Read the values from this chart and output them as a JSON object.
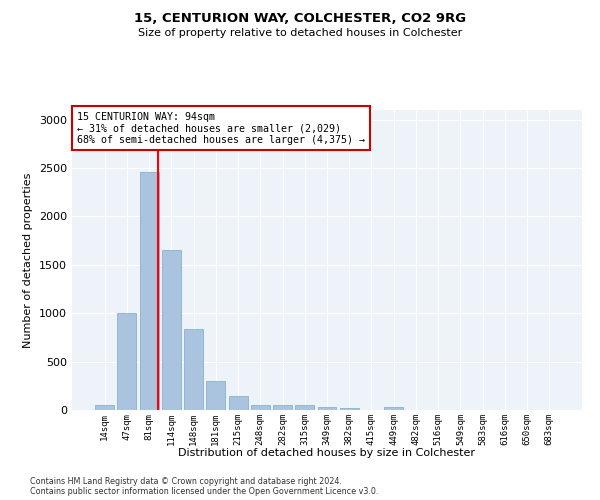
{
  "title1": "15, CENTURION WAY, COLCHESTER, CO2 9RG",
  "title2": "Size of property relative to detached houses in Colchester",
  "xlabel": "Distribution of detached houses by size in Colchester",
  "ylabel": "Number of detached properties",
  "categories": [
    "14sqm",
    "47sqm",
    "81sqm",
    "114sqm",
    "148sqm",
    "181sqm",
    "215sqm",
    "248sqm",
    "282sqm",
    "315sqm",
    "349sqm",
    "382sqm",
    "415sqm",
    "449sqm",
    "482sqm",
    "516sqm",
    "549sqm",
    "583sqm",
    "616sqm",
    "650sqm",
    "683sqm"
  ],
  "values": [
    55,
    1000,
    2460,
    1650,
    840,
    300,
    140,
    55,
    55,
    55,
    30,
    20,
    0,
    30,
    0,
    0,
    0,
    0,
    0,
    0,
    0
  ],
  "bar_color": "#aac4e0",
  "bar_edge_color": "#7aaac8",
  "red_line_x": 2.42,
  "annotation_text": "15 CENTURION WAY: 94sqm\n← 31% of detached houses are smaller (2,029)\n68% of semi-detached houses are larger (4,375) →",
  "annotation_box_color": "#ffffff",
  "annotation_box_edge_color": "#cc0000",
  "ylim": [
    0,
    3100
  ],
  "yticks": [
    0,
    500,
    1000,
    1500,
    2000,
    2500,
    3000
  ],
  "background_color": "#eef2f9",
  "grid_color": "#ffffff",
  "footer1": "Contains HM Land Registry data © Crown copyright and database right 2024.",
  "footer2": "Contains public sector information licensed under the Open Government Licence v3.0."
}
